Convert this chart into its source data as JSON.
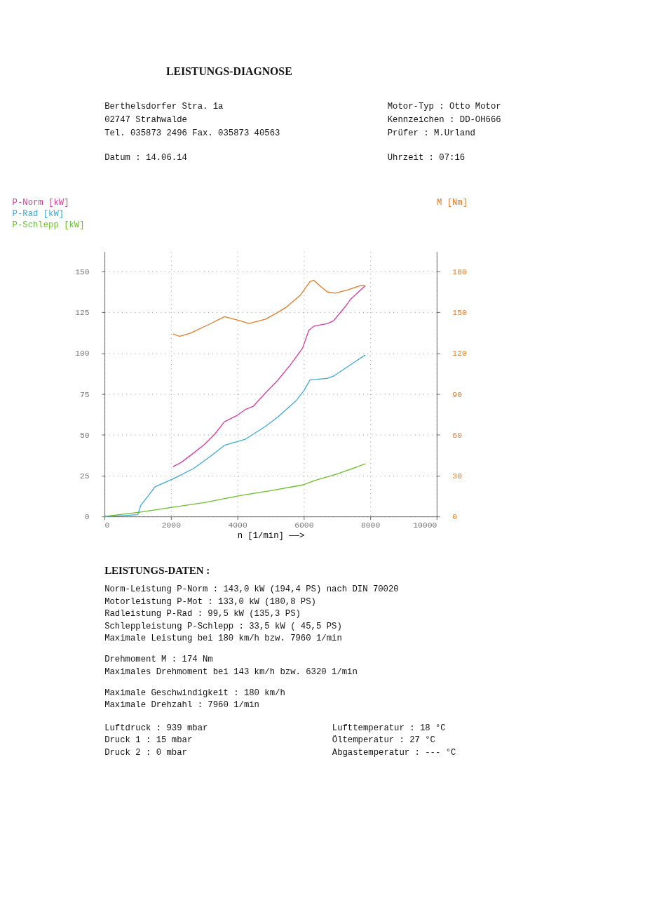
{
  "chart_data": {
    "type": "line",
    "title": "LEISTUNGS-DIAGNOSE",
    "xlabel": "n [1/min] ——>",
    "xlim": [
      0,
      10000
    ],
    "xticks": [
      0,
      2000,
      4000,
      6000,
      8000,
      10000
    ],
    "ylim": [
      0,
      162
    ],
    "yticks": [
      0,
      25,
      50,
      75,
      100,
      125,
      150
    ],
    "y2lim": [
      0,
      194.4
    ],
    "y2ticks": [
      0,
      30,
      60,
      90,
      120,
      150,
      180
    ],
    "grid": true,
    "legend": "top left",
    "marker": "none",
    "line_style": "solid",
    "series": [
      {
        "name": "P-Norm [kW]",
        "color": "#d63c9c",
        "x": [
          2060,
          2300,
          2690,
          3000,
          3300,
          3610,
          4000,
          4240,
          4480,
          4850,
          5220,
          5600,
          5960,
          6150,
          6300,
          6520,
          6700,
          6890,
          7260,
          7410,
          7850
        ],
        "values": [
          30.5,
          33,
          39,
          44,
          50,
          58,
          62,
          65.5,
          67.5,
          75.8,
          83.5,
          93,
          103,
          114,
          116.5,
          117.4,
          118,
          119.7,
          128.8,
          133,
          141.3
        ]
      },
      {
        "name": "P-Rad [kW]",
        "color": "#3fa9d4",
        "x": [
          0,
          500,
          1000,
          1090,
          1280,
          1520,
          2070,
          2690,
          3200,
          3610,
          4240,
          4850,
          5220,
          5780,
          6000,
          6190,
          6700,
          6900,
          7260,
          7850
        ],
        "values": [
          0,
          0.5,
          1.1,
          6.8,
          11.7,
          18.2,
          23.1,
          29.5,
          37,
          43.6,
          47.3,
          55.3,
          61,
          71.2,
          77,
          83.7,
          84.5,
          86,
          90.9,
          98.9
        ]
      },
      {
        "name": "P-Schlepp [kW]",
        "color": "#6cbf2a",
        "x": [
          0,
          1090,
          2070,
          3000,
          4110,
          5000,
          5960,
          6330,
          7000,
          7850
        ],
        "values": [
          0,
          2.7,
          5.7,
          8.5,
          12.9,
          15.8,
          19.3,
          22,
          26,
          32.2
        ]
      },
      {
        "name": "M [Nm]",
        "color": "#e07b2a",
        "axis": "y2",
        "x": [
          2070,
          2260,
          2570,
          3130,
          3610,
          3980,
          4350,
          4850,
          5220,
          5460,
          5900,
          6190,
          6300,
          6520,
          6700,
          6940,
          7310,
          7690,
          7850
        ],
        "values": [
          134,
          132.3,
          134.5,
          140.9,
          146.8,
          144.5,
          141.8,
          145,
          150,
          153.6,
          162.7,
          172.7,
          173.5,
          168.6,
          165,
          164,
          166.4,
          169.5,
          169.5
        ]
      }
    ],
    "annotations": [
      "Berthelsdorfer Stra. 1a",
      "02747 Strahwalde",
      "Tel. 035873 2496   Fax. 035873 40563",
      "Datum : 14.06.14",
      "Motor-Typ : Otto Motor",
      "Kennzeichen : DD-OH666",
      "Prüfer : M.Urland",
      "Uhrzeit : 07:16",
      "LEISTUNGS-DATEN :",
      "Norm-Leistung P-Norm : 143,0 kW (194,4 PS) nach DIN 70020",
      "Motorleistung P-Mot : 133,0 kW (180,8 PS)",
      "Radleistung P-Rad : 99,5 kW (135,3 PS)",
      "Schleppleistung P-Schlepp : 33,5 kW ( 45,5 PS)",
      "Maximale Leistung bei 180 km/h bzw. 7960 1/min",
      "Drehmoment M : 174 Nm",
      "Maximales Drehmoment bei 143 km/h bzw. 6320 1/min",
      "Maximale Geschwindigkeit : 180 km/h",
      "Maximale Drehzahl : 7960 1/min",
      "Luftdruck : 939 mbar",
      "Druck 1 : 15 mbar",
      "Druck 2 : 0 mbar",
      "Lufttemperatur : 18 °C",
      "Öltemperatur : 27 °C",
      "Abgastemperatur : --- °C"
    ]
  }
}
